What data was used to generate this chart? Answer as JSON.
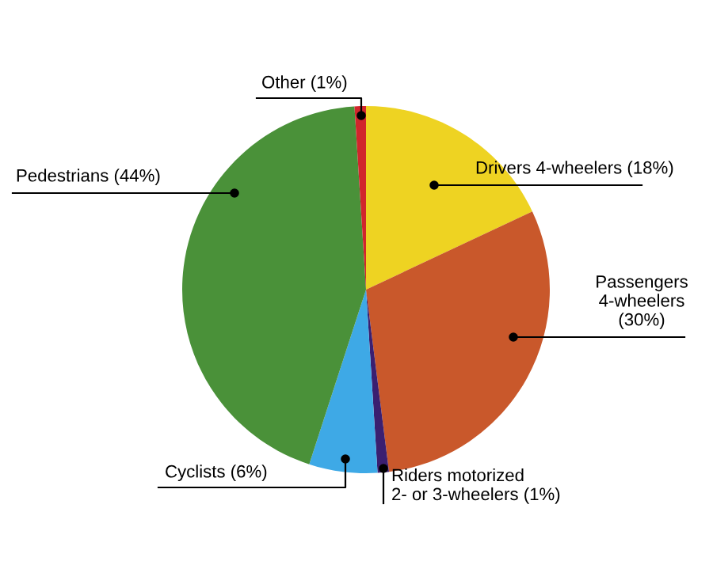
{
  "chart_data": {
    "type": "pie",
    "categories": [
      "Drivers 4-wheelers",
      "Passengers 4-wheelers",
      "Riders motorized 2- or 3-wheelers",
      "Cyclists",
      "Pedestrians",
      "Other"
    ],
    "values": [
      18,
      30,
      1,
      6,
      44,
      1
    ],
    "value_labels": [
      "(18%)",
      "(30%)",
      "(1%)",
      "(6%)",
      "(44%)",
      "(1%)"
    ],
    "colors": [
      "#eed322",
      "#c9582b",
      "#3a1f70",
      "#3ea9e6",
      "#4a9139",
      "#d1262c"
    ]
  }
}
